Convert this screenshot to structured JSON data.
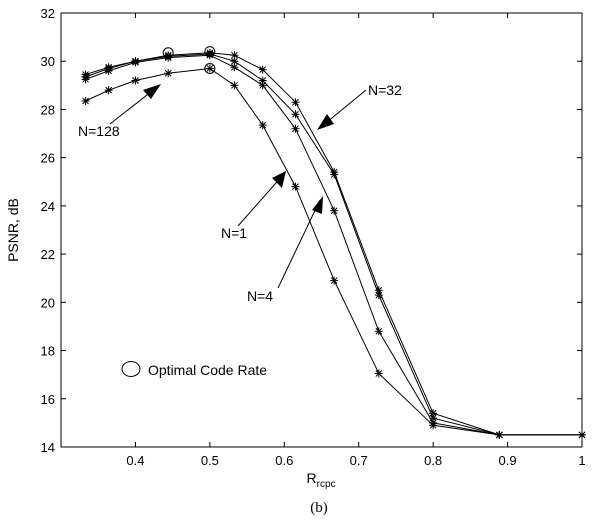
{
  "chart_data": {
    "type": "line",
    "title": "",
    "xlabel": "R",
    "xlabel_sub": "rcpc",
    "ylabel": "PSNR, dB",
    "caption": "(b)",
    "xlim": [
      0.3,
      1.0
    ],
    "ylim": [
      14,
      32
    ],
    "xticks": [
      0.4,
      0.5,
      0.6,
      0.7,
      0.8,
      0.9,
      1
    ],
    "xtick_labels": [
      "0.4",
      "0.5",
      "0.6",
      "0.7",
      "0.8",
      "0.9",
      "1"
    ],
    "yticks": [
      14,
      16,
      18,
      20,
      22,
      24,
      26,
      28,
      30,
      32
    ],
    "ytick_labels": [
      "14",
      "16",
      "18",
      "20",
      "22",
      "24",
      "26",
      "28",
      "30",
      "32"
    ],
    "grid": false,
    "series": [
      {
        "name": "N=1",
        "x": [
          0.333,
          0.364,
          0.4,
          0.444,
          0.5,
          0.533,
          0.571,
          0.615,
          0.667,
          0.727,
          0.8,
          0.889,
          1.0
        ],
        "y": [
          29.45,
          29.75,
          30.0,
          30.25,
          30.35,
          30.25,
          29.65,
          28.3,
          25.4,
          20.5,
          15.4,
          14.5,
          14.5
        ]
      },
      {
        "name": "N=4",
        "x": [
          0.333,
          0.364,
          0.4,
          0.444,
          0.5,
          0.533,
          0.571,
          0.615,
          0.667,
          0.727,
          0.8,
          0.889,
          1.0
        ],
        "y": [
          29.35,
          29.7,
          30.0,
          30.2,
          30.3,
          30.0,
          29.2,
          27.8,
          25.3,
          20.3,
          15.2,
          14.5,
          14.5
        ]
      },
      {
        "name": "N=32",
        "x": [
          0.333,
          0.364,
          0.4,
          0.444,
          0.5,
          0.533,
          0.571,
          0.615,
          0.667,
          0.727,
          0.8,
          0.889,
          1.0
        ],
        "y": [
          29.25,
          29.6,
          29.95,
          30.15,
          30.25,
          29.75,
          29.0,
          27.2,
          23.8,
          18.8,
          15.0,
          14.5,
          14.5
        ]
      },
      {
        "name": "N=128",
        "x": [
          0.333,
          0.364,
          0.4,
          0.444,
          0.5,
          0.533,
          0.571,
          0.615,
          0.667,
          0.727,
          0.8,
          0.889,
          1.0
        ],
        "y": [
          28.35,
          28.8,
          29.2,
          29.5,
          29.7,
          29.0,
          27.35,
          24.8,
          20.9,
          17.05,
          14.9,
          14.5,
          14.5
        ]
      }
    ],
    "optimal_points": [
      {
        "x": 0.444,
        "y": 30.35
      },
      {
        "x": 0.5,
        "y": 30.4
      },
      {
        "x": 0.5,
        "y": 29.7
      }
    ],
    "legend": {
      "label": "Optimal Code Rate",
      "marker": "circle"
    },
    "annotations": [
      {
        "text": "N=128"
      },
      {
        "text": "N=32"
      },
      {
        "text": "N=1"
      },
      {
        "text": "N=4"
      }
    ]
  }
}
